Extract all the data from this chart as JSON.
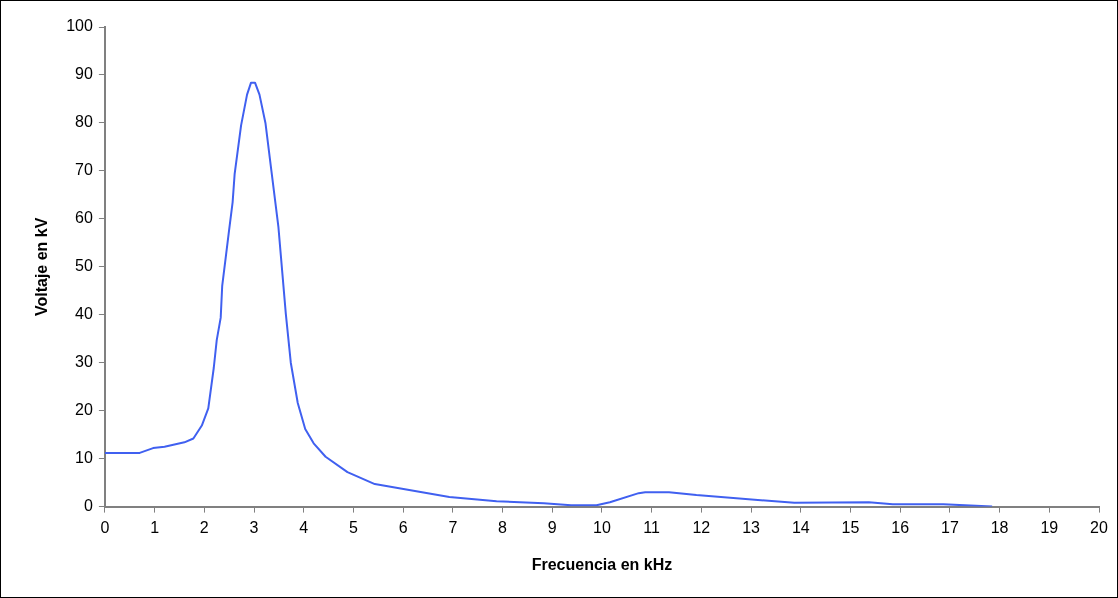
{
  "chart_data": {
    "type": "line",
    "xlabel": "Frecuencia en kHz",
    "ylabel": "Voltaje en kV",
    "x": [
      0,
      0.7,
      0.97,
      1.2,
      1.6,
      1.78,
      1.95,
      2.08,
      2.19,
      2.25,
      2.33,
      2.36,
      2.49,
      2.57,
      2.61,
      2.74,
      2.86,
      2.94,
      3.02,
      3.11,
      3.23,
      3.35,
      3.49,
      3.64,
      3.74,
      3.88,
      4.03,
      4.2,
      4.44,
      4.88,
      5.43,
      6.93,
      7.88,
      8.83,
      9.38,
      9.89,
      10.16,
      10.74,
      10.87,
      11.35,
      11.9,
      13.87,
      15.37,
      15.85,
      16.87,
      17.85
    ],
    "series": [
      {
        "color": "#4060f0",
        "values": [
          11.2,
          11.2,
          12.2,
          12.5,
          13.4,
          14.2,
          16.9,
          20.5,
          28.9,
          34.7,
          39.4,
          46,
          56.9,
          63.5,
          69.3,
          79.5,
          85.9,
          88.4,
          88.4,
          85.9,
          80,
          70,
          58.4,
          40.2,
          30,
          21.6,
          16.2,
          13.2,
          10.4,
          7.2,
          4.7,
          2,
          1.1,
          0.7,
          0.3,
          0.3,
          0.9,
          2.8,
          3,
          3,
          2.4,
          0.8,
          0.9,
          0.5,
          0.5,
          0
        ]
      }
    ],
    "xlim": [
      0,
      20
    ],
    "xticks": [
      0,
      1,
      2,
      3,
      4,
      5,
      6,
      7,
      8,
      9,
      10,
      11,
      12,
      13,
      14,
      15,
      16,
      17,
      18,
      19,
      20
    ],
    "ylim": [
      0,
      100
    ],
    "yticks": [
      0,
      10,
      20,
      30,
      40,
      50,
      60,
      70,
      80,
      90,
      100
    ],
    "grid": false,
    "legend": false,
    "marker": "none",
    "line_style": "solid"
  }
}
